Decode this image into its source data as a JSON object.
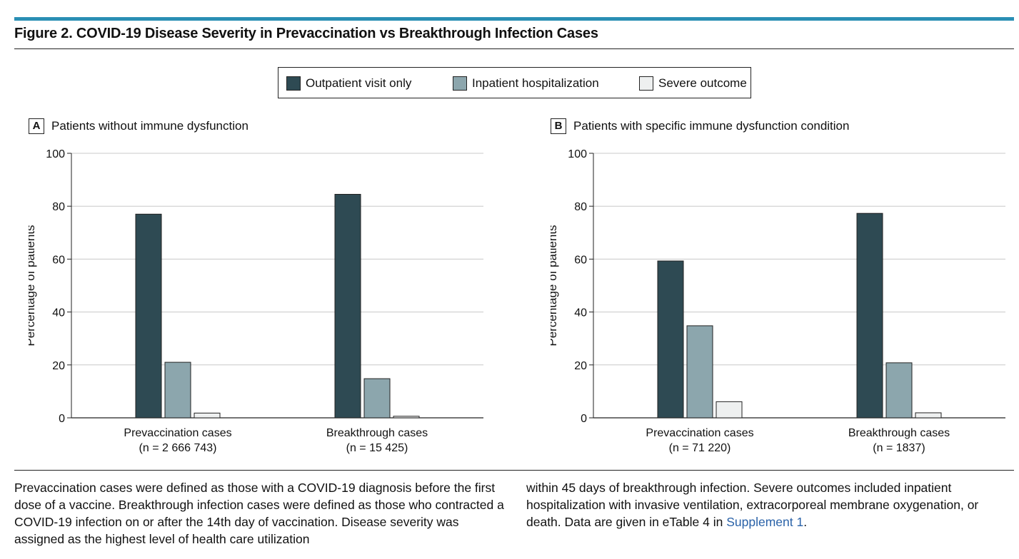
{
  "figure": {
    "title": "Figure 2. COVID-19 Disease Severity in Prevaccination vs Breakthrough Infection Cases"
  },
  "legend": {
    "items": [
      {
        "label": "Outpatient visit only",
        "color": "#2e4a53"
      },
      {
        "label": "Inpatient hospitalization",
        "color": "#8ca6ad"
      },
      {
        "label": "Severe outcome",
        "color": "#eef0f0"
      }
    ]
  },
  "chart_data": [
    {
      "type": "bar",
      "panel_letter": "A",
      "title": "Patients without immune dysfunction",
      "ylabel": "Percentage of patients",
      "ylim": [
        0,
        100
      ],
      "yticks": [
        "0",
        "20",
        "40",
        "60",
        "80",
        "100"
      ],
      "grid": true,
      "categories": [
        "Prevaccination cases",
        "Breakthrough cases"
      ],
      "category_sublabels": [
        "(n = 2 666 743)",
        "(n = 15 425)"
      ],
      "series": [
        {
          "name": "Outpatient visit only",
          "values": [
            77,
            84.5
          ]
        },
        {
          "name": "Inpatient hospitalization",
          "values": [
            21,
            14.8
          ]
        },
        {
          "name": "Severe outcome",
          "values": [
            1.8,
            0.6
          ]
        }
      ]
    },
    {
      "type": "bar",
      "panel_letter": "B",
      "title": "Patients with specific immune dysfunction condition",
      "ylabel": "Percentage of patients",
      "ylim": [
        0,
        100
      ],
      "yticks": [
        "0",
        "20",
        "40",
        "60",
        "80",
        "100"
      ],
      "grid": true,
      "categories": [
        "Prevaccination cases",
        "Breakthrough cases"
      ],
      "category_sublabels": [
        "(n = 71 220)",
        "(n = 1837)"
      ],
      "series": [
        {
          "name": "Outpatient visit only",
          "values": [
            59.3,
            77.3
          ]
        },
        {
          "name": "Inpatient hospitalization",
          "values": [
            34.8,
            20.8
          ]
        },
        {
          "name": "Severe outcome",
          "values": [
            6.1,
            1.9
          ]
        }
      ]
    }
  ],
  "caption": {
    "left": "Prevaccination cases were defined as those with a COVID-19 diagnosis before the first dose of a vaccine. Breakthrough infection cases were defined as those who contracted a COVID-19 infection on or after the 14th day of vaccination. Disease severity was assigned as the highest level of health care utilization",
    "right_before_link": "within 45 days of breakthrough infection. Severe outcomes included inpatient hospitalization with invasive ventilation, extracorporeal membrane oxygenation, or death. Data are given in eTable 4 in ",
    "link": "Supplement 1",
    "right_after_link": "."
  }
}
